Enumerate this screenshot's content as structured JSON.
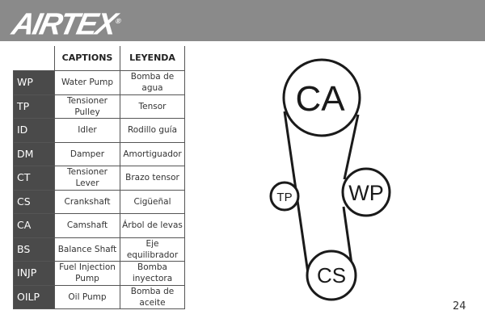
{
  "header": {
    "logo": "AIRTEX",
    "registered": "®",
    "bar_color": "#8a8a8a"
  },
  "table": {
    "headers": [
      "",
      "CAPTIONS",
      "LEYENDA"
    ],
    "rows": [
      {
        "abbr": "WP",
        "caption": "Water Pump",
        "leyenda": "Bomba de agua"
      },
      {
        "abbr": "TP",
        "caption": "Tensioner Pulley",
        "leyenda": "Tensor"
      },
      {
        "abbr": "ID",
        "caption": "Idler",
        "leyenda": "Rodillo guía"
      },
      {
        "abbr": "DM",
        "caption": "Damper",
        "leyenda": "Amortiguador"
      },
      {
        "abbr": "CT",
        "caption": "Tensioner Lever",
        "leyenda": "Brazo tensor"
      },
      {
        "abbr": "CS",
        "caption": "Crankshaft",
        "leyenda": "Cigüeñal"
      },
      {
        "abbr": "CA",
        "caption": "Camshaft",
        "leyenda": "Árbol de levas"
      },
      {
        "abbr": "BS",
        "caption": "Balance Shaft",
        "leyenda": "Eje equilibrador"
      },
      {
        "abbr": "INJP",
        "caption": "Fuel Injection Pump",
        "leyenda": "Bomba inyectora"
      },
      {
        "abbr": "OILP",
        "caption": "Oil Pump",
        "leyenda": "Bomba de aceite"
      }
    ]
  },
  "diagram": {
    "pulleys": {
      "ca": "CA",
      "wp": "WP",
      "tp": "TP",
      "cs": "CS"
    }
  },
  "page_number": "24"
}
